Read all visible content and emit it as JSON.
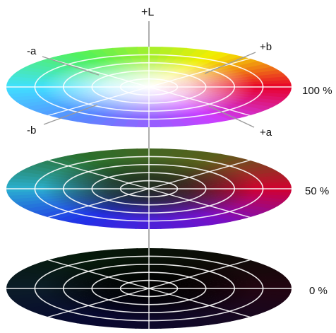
{
  "axis": {
    "lightness_label": "+L",
    "minus_a_label": "-a",
    "plus_b_label": "+b",
    "minus_b_label": "-b",
    "plus_a_label": "+a"
  },
  "disks": [
    {
      "percent_label": "100 %",
      "center_color": "#ffffff",
      "red": "#e8002a",
      "yellow": "#f4ee00",
      "green": "#52f15a",
      "cyan": "#40e0ff",
      "blue": "#5a86ff",
      "magenta": "#cc3dff"
    },
    {
      "percent_label": "50 %",
      "center_color": "#202a20",
      "red": "#d2002f",
      "yellow": "#5a5e1a",
      "green": "#2a6f2c",
      "cyan": "#2ab0d0",
      "blue": "#2030e8",
      "magenta": "#7410c8"
    },
    {
      "percent_label": "0 %",
      "center_color": "#000000",
      "red": "#230410",
      "yellow": "#0c0c06",
      "green": "#061a0a",
      "cyan": "#0b1c28",
      "blue": "#070830",
      "magenta": "#140824"
    }
  ]
}
